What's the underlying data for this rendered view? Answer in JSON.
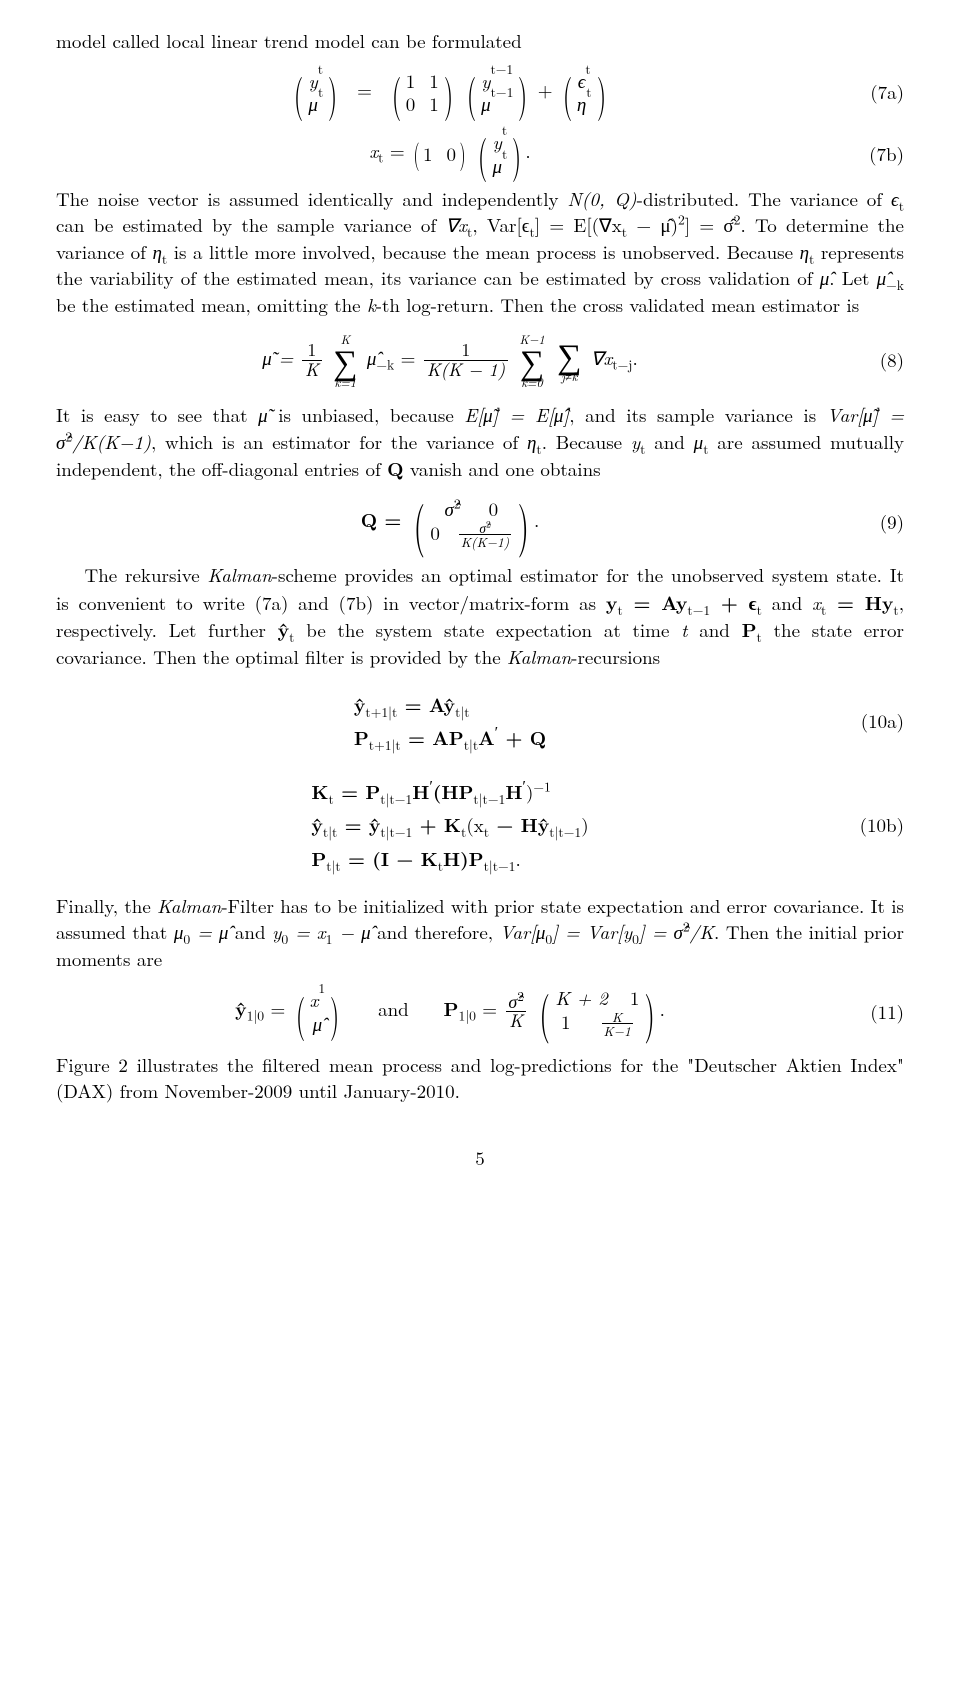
{
  "para1": "model called local linear trend model can be formulated",
  "eq7a": {
    "lhs_top": "y",
    "lhs_top_sub": "t",
    "lhs_bot": "μ",
    "lhs_bot_sub": "t",
    "m11": "1",
    "m12": "1",
    "m21": "0",
    "m22": "1",
    "v1_top": "y",
    "v1_top_sub": "t−1",
    "v1_bot": "μ",
    "v1_bot_sub": "t−1",
    "plus": " + ",
    "v2_top": "ϵ",
    "v2_top_sub": "t",
    "v2_bot": "η",
    "v2_bot_sub": "t",
    "label": "(7a)"
  },
  "eq7b": {
    "lhs": "x",
    "lhs_sub": "t",
    "eq": " = ",
    "row1": "1",
    "row2": "0",
    "v_top": "y",
    "v_top_sub": "t",
    "v_bot": "μ",
    "v_bot_sub": "t",
    "dot": ".",
    "label": "(7b)"
  },
  "para2_a": "The noise vector is assumed identically and independently ",
  "para2_b": "-distributed. The variance of ",
  "para2_c": " can be estimated by the sample variance of ",
  "para2_d": ". To determine the variance of ",
  "para2_e": " is a little more involved, because the mean process is unobserved. Because ",
  "para2_f": " represents the variability of the estimated mean, its variance can be estimated by cross validation of ",
  "para2_g": ". Let ",
  "para2_h": " be the estimated mean, omitting the ",
  "para2_i": "-th log-return. Then the cross validated mean estimator is",
  "sym": {
    "N0Q": "N(0, Q)",
    "eps_t": "ϵ",
    "eps_t_sub": "t",
    "nabla_xt": "∇x",
    "nabla_xt_sub": "t",
    "var_eps": ", Var[ϵ",
    "var_eps_sub": "t",
    "var_eps_end": "] = E[(∇x",
    "var_eps_end_sub": "t",
    "var_eps_end2": " − μ̂)",
    "sq": "2",
    "var_eps_end3": "] = σ̂",
    "var_eps_end4": "2",
    "eta_t": "η",
    "eta_t_sub": "t",
    "muhat": "μ̂",
    "muhat_mk": "μ̂",
    "muhat_mk_sub": "−k",
    "k": "k"
  },
  "eq8": {
    "lhs": "μ̃ = ",
    "frac1_num": "1",
    "frac1_den": "K",
    "sum1_top": "K",
    "sum1_bot": "k=1",
    "term1": "μ̂",
    "term1_sub": "−k",
    "eq2": " = ",
    "frac2_num": "1",
    "frac2_den": "K(K − 1)",
    "sum2_top": "K−1",
    "sum2_bot": "k=0",
    "sum3_top": "",
    "sum3_bot": "j≠k",
    "term2": "∇x",
    "term2_sub": "t−j",
    "dot": ".",
    "label": "(8)"
  },
  "para3_a": "It is easy to see that ",
  "para3_b": " is unbiased, because ",
  "para3_c": ", and its sample variance is ",
  "para3_d": ", which is an estimator for the variance of ",
  "para3_e": ". Because ",
  "para3_f": " and ",
  "para3_g": " are assumed mutually independent, the off-diagonal entries of ",
  "para3_h": " vanish and one obtains",
  "sym3": {
    "mutil": "μ̃",
    "E1": "E[μ̃] = E[μ̂]",
    "Var1": "Var[μ̃] = σ̂",
    "Var1_sup": "2",
    "Var1b": "/K(K−1)",
    "eta_t": "η",
    "eta_t_sub": "t",
    "yt": "y",
    "yt_sub": "t",
    "mut": "μ",
    "mut_sub": "t",
    "Q": "Q"
  },
  "eq9": {
    "lhs": "Q = ",
    "m11": "σ̂",
    "m11_sup": "2",
    "m12": "0",
    "m21": "0",
    "m22_num": "σ̂",
    "m22_num_sup": "2",
    "m22_den": "K(K−1)",
    "dot": ".",
    "label": "(9)"
  },
  "para4_a": "The rekursive ",
  "para4_b": "-scheme provides an optimal estimator for the unobserved system state. It is convenient to write (7a) and (7b) in vector/matrix-form as ",
  "para4_c": " and ",
  "para4_d": ", respectively. Let further ",
  "para4_e": " be the system state expectation at time ",
  "para4_f": " and ",
  "para4_g": " the state error covariance. Then the optimal filter is provided by the ",
  "para4_h": "-recursions",
  "sym4": {
    "Kalman": "Kalman",
    "form1a": "y",
    "form1a_sub": "t",
    "form1b": " = Ay",
    "form1b_sub": "t−1",
    "form1c": " + ϵ",
    "form1c_sub": "t",
    "form2a": "x",
    "form2a_sub": "t",
    "form2b": " = Hy",
    "form2b_sub": "t",
    "yhat": "ŷ",
    "yhat_sub": "t",
    "tvar": "t",
    "Pt": "P",
    "Pt_sub": "t"
  },
  "eq10a": {
    "l1": "ŷ",
    "l1_sub": "t+1|t",
    "l1b": " = Aŷ",
    "l1b_sub": "t|t",
    "l2": "P",
    "l2_sub": "t+1|t",
    "l2b": " = AP",
    "l2b_sub": "t|t",
    "l2c": "A",
    "l2d": " + Q",
    "label": "(10a)"
  },
  "eq10b": {
    "l1": "K",
    "l1_sub": "t",
    "l1b": " = P",
    "l1b_sub": "t|t−1",
    "l1c": "H",
    "l1d": "(HP",
    "l1d_sub": "t|t−1",
    "l1e": "H",
    "l1f": ")",
    "l1f_sup": "−1",
    "l2": "ŷ",
    "l2_sub": "t|t",
    "l2b": " = ŷ",
    "l2b_sub": "t|t−1",
    "l2c": " + K",
    "l2c_sub": "t",
    "l2d": "(x",
    "l2d_sub": "t",
    "l2e": " − Hŷ",
    "l2e_sub": "t|t−1",
    "l2f": ")",
    "l3": "P",
    "l3_sub": "t|t",
    "l3b": " = (I − K",
    "l3b_sub": "t",
    "l3c": "H)P",
    "l3c_sub": "t|t−1",
    "l3d": ".",
    "label": "(10b)"
  },
  "para5_a": "Finally, the ",
  "para5_b": "-Filter has to be initialized with prior state expectation and error covariance. It is assumed that ",
  "para5_c": " and ",
  "para5_d": " and therefore, ",
  "para5_e": ". Then the initial prior moments are",
  "sym5": {
    "Kalman": "Kalman",
    "init1": "μ",
    "init1_sub": "0",
    "init1b": " = μ̂",
    "init2": "y",
    "init2_sub": "0",
    "init2b": " = x",
    "init2b_sub": "1",
    "init2c": " − μ̂",
    "init3": "Var[μ",
    "init3_sub": "0",
    "init3b": "] = Var[y",
    "init3b_sub": "0",
    "init3c": "] = σ̂",
    "init3c_sup": "2",
    "init3d": "/K"
  },
  "eq11": {
    "lhs": "ŷ",
    "lhs_sub": "1|0",
    "eq": " = ",
    "v_top": "x",
    "v_top_sub": "1",
    "v_bot": "μ̂",
    "and": "and",
    "rhs": "P",
    "rhs_sub": "1|0",
    "eq2": " = ",
    "frac_num": "σ̂",
    "frac_num_sup": "2",
    "frac_den": "K",
    "m11": "K + 2",
    "m12": "1",
    "m21": "1",
    "m22_num": "K",
    "m22_den": "K−1",
    "dot": ".",
    "label": "(11)"
  },
  "para6": "Figure 2 illustrates the filtered mean process and log-predictions for the \"Deutscher Aktien Index\" (DAX) from November-2009 until January-2010.",
  "pagenum": "5",
  "colors": {
    "text": "#000000",
    "background": "#ffffff"
  }
}
